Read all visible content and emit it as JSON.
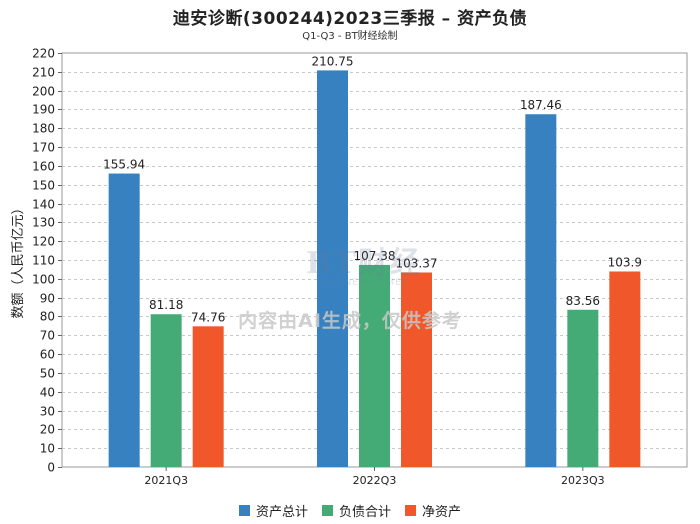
{
  "title": "迪安诊断(300244)2023三季报 – 资产负债",
  "subtitle": "Q1-Q3 - BT财经绘制",
  "watermark": {
    "logo_text": "BT财经",
    "sub_text": "BUSINESS TIMES"
  },
  "notice": "内容由AI生成，仅供参考",
  "chart_data": {
    "type": "bar",
    "title": "迪安诊断(300244)2023三季报 – 资产负债",
    "xlabel": "",
    "ylabel": "数额（人民币亿元）",
    "ylim": [
      0,
      220
    ],
    "ytick_step": 10,
    "grid": true,
    "legend_position": "bottom-center",
    "categories": [
      "2021Q3",
      "2022Q3",
      "2023Q3"
    ],
    "series": [
      {
        "name": "资产总计",
        "color": "#3781c0",
        "values": [
          155.94,
          210.75,
          187.46
        ],
        "labels": [
          "155.94",
          "210.75",
          "187.46"
        ]
      },
      {
        "name": "负债合计",
        "color": "#45ab76",
        "values": [
          81.18,
          107.38,
          83.56
        ],
        "labels": [
          "81.18",
          "107.38",
          "83.56"
        ]
      },
      {
        "name": "净资产",
        "color": "#f0582b",
        "values": [
          74.76,
          103.37,
          103.9
        ],
        "labels": [
          "74.76",
          "103.37",
          "103.9"
        ]
      }
    ]
  }
}
